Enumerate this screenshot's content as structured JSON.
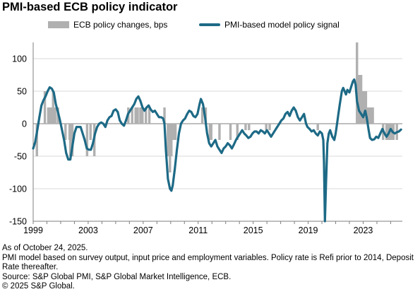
{
  "chart_data": {
    "type": "bar+line",
    "title": "PMI-based ECB policy indicator",
    "xlabel": "",
    "ylabel": "",
    "xlim": [
      1999,
      2025.85
    ],
    "ylim": [
      -150,
      125
    ],
    "yticks": [
      100,
      50,
      0,
      -50,
      -100,
      -150
    ],
    "xticks": [
      1999,
      2003,
      2007,
      2011,
      2015,
      2019,
      2023
    ],
    "grid": "horizontal",
    "legend": "top",
    "colors": {
      "bars": "#b0b0b0",
      "line": "#1d6a86"
    },
    "series": [
      {
        "name": "ECB policy changes, bps",
        "type": "bar",
        "points": [
          [
            1999.27,
            -50
          ],
          [
            1999.85,
            50
          ],
          [
            2000.1,
            25
          ],
          [
            2000.17,
            25
          ],
          [
            2000.3,
            25
          ],
          [
            2000.45,
            50
          ],
          [
            2000.6,
            25
          ],
          [
            2000.8,
            25
          ],
          [
            2001.35,
            -25
          ],
          [
            2001.65,
            -25
          ],
          [
            2001.7,
            -50
          ],
          [
            2001.85,
            -50
          ],
          [
            2002.92,
            -50
          ],
          [
            2003.17,
            -25
          ],
          [
            2003.45,
            -50
          ],
          [
            2005.92,
            25
          ],
          [
            2006.2,
            25
          ],
          [
            2006.45,
            25
          ],
          [
            2006.6,
            25
          ],
          [
            2006.8,
            25
          ],
          [
            2006.95,
            25
          ],
          [
            2007.2,
            25
          ],
          [
            2007.45,
            25
          ],
          [
            2008.55,
            25
          ],
          [
            2008.8,
            -50
          ],
          [
            2008.87,
            -50
          ],
          [
            2008.95,
            -75
          ],
          [
            2009.05,
            -50
          ],
          [
            2009.2,
            -25
          ],
          [
            2009.35,
            -25
          ],
          [
            2011.3,
            25
          ],
          [
            2011.55,
            25
          ],
          [
            2011.85,
            -25
          ],
          [
            2011.95,
            -25
          ],
          [
            2012.55,
            -25
          ],
          [
            2013.35,
            -25
          ],
          [
            2013.85,
            -25
          ],
          [
            2014.45,
            -10
          ],
          [
            2014.7,
            -10
          ],
          [
            2015.95,
            -10
          ],
          [
            2016.2,
            -10
          ],
          [
            2019.7,
            -10
          ],
          [
            2022.55,
            125
          ],
          [
            2022.7,
            75
          ],
          [
            2022.85,
            75
          ],
          [
            2022.95,
            50
          ],
          [
            2023.1,
            50
          ],
          [
            2023.2,
            50
          ],
          [
            2023.35,
            25
          ],
          [
            2023.45,
            25
          ],
          [
            2023.6,
            25
          ],
          [
            2023.7,
            25
          ],
          [
            2024.45,
            -25
          ],
          [
            2024.7,
            -25
          ],
          [
            2024.8,
            -25
          ],
          [
            2024.95,
            -25
          ],
          [
            2025.1,
            -25
          ],
          [
            2025.2,
            -25
          ],
          [
            2025.45,
            -25
          ]
        ]
      },
      {
        "name": "PMI-based model policy signal",
        "type": "line",
        "points": [
          [
            1999.0,
            -38
          ],
          [
            1999.15,
            -28
          ],
          [
            1999.3,
            -10
          ],
          [
            1999.45,
            10
          ],
          [
            1999.6,
            28
          ],
          [
            1999.75,
            36
          ],
          [
            1999.9,
            42
          ],
          [
            2000.05,
            50
          ],
          [
            2000.2,
            56
          ],
          [
            2000.35,
            54
          ],
          [
            2000.5,
            48
          ],
          [
            2000.65,
            30
          ],
          [
            2000.8,
            18
          ],
          [
            2000.95,
            5
          ],
          [
            2001.1,
            -10
          ],
          [
            2001.25,
            -25
          ],
          [
            2001.4,
            -45
          ],
          [
            2001.55,
            -55
          ],
          [
            2001.7,
            -55
          ],
          [
            2001.85,
            -35
          ],
          [
            2002.0,
            -15
          ],
          [
            2002.15,
            -5
          ],
          [
            2002.3,
            -5
          ],
          [
            2002.45,
            -5
          ],
          [
            2002.6,
            -15
          ],
          [
            2002.75,
            -25
          ],
          [
            2002.9,
            -38
          ],
          [
            2003.05,
            -40
          ],
          [
            2003.2,
            -40
          ],
          [
            2003.35,
            -30
          ],
          [
            2003.5,
            -15
          ],
          [
            2003.65,
            -5
          ],
          [
            2003.8,
            0
          ],
          [
            2003.95,
            2
          ],
          [
            2004.1,
            0
          ],
          [
            2004.25,
            -5
          ],
          [
            2004.4,
            5
          ],
          [
            2004.55,
            10
          ],
          [
            2004.7,
            12
          ],
          [
            2004.85,
            20
          ],
          [
            2005.0,
            22
          ],
          [
            2005.15,
            18
          ],
          [
            2005.3,
            5
          ],
          [
            2005.45,
            0
          ],
          [
            2005.6,
            -3
          ],
          [
            2005.75,
            5
          ],
          [
            2005.9,
            15
          ],
          [
            2006.05,
            20
          ],
          [
            2006.2,
            25
          ],
          [
            2006.35,
            30
          ],
          [
            2006.5,
            38
          ],
          [
            2006.65,
            42
          ],
          [
            2006.8,
            35
          ],
          [
            2006.95,
            25
          ],
          [
            2007.1,
            20
          ],
          [
            2007.25,
            25
          ],
          [
            2007.4,
            28
          ],
          [
            2007.55,
            22
          ],
          [
            2007.7,
            18
          ],
          [
            2007.85,
            20
          ],
          [
            2008.0,
            15
          ],
          [
            2008.15,
            10
          ],
          [
            2008.3,
            10
          ],
          [
            2008.45,
            8
          ],
          [
            2008.55,
            0
          ],
          [
            2008.65,
            -40
          ],
          [
            2008.8,
            -85
          ],
          [
            2008.95,
            -100
          ],
          [
            2009.05,
            -103
          ],
          [
            2009.15,
            -95
          ],
          [
            2009.3,
            -70
          ],
          [
            2009.45,
            -40
          ],
          [
            2009.6,
            -15
          ],
          [
            2009.75,
            0
          ],
          [
            2009.9,
            5
          ],
          [
            2010.05,
            8
          ],
          [
            2010.2,
            15
          ],
          [
            2010.35,
            20
          ],
          [
            2010.5,
            18
          ],
          [
            2010.65,
            12
          ],
          [
            2010.8,
            10
          ],
          [
            2010.95,
            15
          ],
          [
            2011.1,
            30
          ],
          [
            2011.2,
            38
          ],
          [
            2011.35,
            30
          ],
          [
            2011.5,
            10
          ],
          [
            2011.65,
            -15
          ],
          [
            2011.8,
            -30
          ],
          [
            2011.95,
            -35
          ],
          [
            2012.1,
            -30
          ],
          [
            2012.25,
            -25
          ],
          [
            2012.4,
            -35
          ],
          [
            2012.55,
            -40
          ],
          [
            2012.7,
            -45
          ],
          [
            2012.85,
            -38
          ],
          [
            2013.0,
            -35
          ],
          [
            2013.15,
            -30
          ],
          [
            2013.3,
            -33
          ],
          [
            2013.45,
            -38
          ],
          [
            2013.6,
            -32
          ],
          [
            2013.75,
            -25
          ],
          [
            2013.9,
            -20
          ],
          [
            2014.05,
            -15
          ],
          [
            2014.2,
            -10
          ],
          [
            2014.35,
            -15
          ],
          [
            2014.5,
            -18
          ],
          [
            2014.65,
            -22
          ],
          [
            2014.8,
            -20
          ],
          [
            2014.95,
            -15
          ],
          [
            2015.1,
            -12
          ],
          [
            2015.25,
            -12
          ],
          [
            2015.4,
            -15
          ],
          [
            2015.55,
            -10
          ],
          [
            2015.7,
            -12
          ],
          [
            2015.85,
            -15
          ],
          [
            2016.0,
            -10
          ],
          [
            2016.15,
            -15
          ],
          [
            2016.3,
            -20
          ],
          [
            2016.45,
            -15
          ],
          [
            2016.6,
            -10
          ],
          [
            2016.75,
            -5
          ],
          [
            2016.9,
            0
          ],
          [
            2017.05,
            5
          ],
          [
            2017.2,
            8
          ],
          [
            2017.35,
            15
          ],
          [
            2017.5,
            18
          ],
          [
            2017.65,
            12
          ],
          [
            2017.8,
            20
          ],
          [
            2017.95,
            25
          ],
          [
            2018.1,
            20
          ],
          [
            2018.25,
            10
          ],
          [
            2018.4,
            5
          ],
          [
            2018.55,
            10
          ],
          [
            2018.7,
            15
          ],
          [
            2018.85,
            0
          ],
          [
            2018.95,
            -5
          ],
          [
            2019.1,
            -8
          ],
          [
            2019.25,
            -12
          ],
          [
            2019.4,
            -10
          ],
          [
            2019.55,
            -15
          ],
          [
            2019.7,
            -18
          ],
          [
            2019.85,
            -12
          ],
          [
            2020.0,
            -15
          ],
          [
            2020.1,
            -25
          ],
          [
            2020.15,
            -60
          ],
          [
            2020.22,
            -150
          ],
          [
            2020.3,
            -90
          ],
          [
            2020.4,
            -30
          ],
          [
            2020.5,
            -15
          ],
          [
            2020.6,
            -10
          ],
          [
            2020.75,
            -20
          ],
          [
            2020.9,
            -25
          ],
          [
            2021.0,
            -15
          ],
          [
            2021.1,
            0
          ],
          [
            2021.2,
            15
          ],
          [
            2021.3,
            30
          ],
          [
            2021.45,
            50
          ],
          [
            2021.55,
            55
          ],
          [
            2021.65,
            50
          ],
          [
            2021.75,
            45
          ],
          [
            2021.85,
            52
          ],
          [
            2022.0,
            48
          ],
          [
            2022.1,
            55
          ],
          [
            2022.25,
            65
          ],
          [
            2022.35,
            68
          ],
          [
            2022.45,
            60
          ],
          [
            2022.55,
            35
          ],
          [
            2022.7,
            20
          ],
          [
            2022.85,
            15
          ],
          [
            2023.0,
            10
          ],
          [
            2023.15,
            20
          ],
          [
            2023.25,
            10
          ],
          [
            2023.4,
            -10
          ],
          [
            2023.5,
            -22
          ],
          [
            2023.65,
            -25
          ],
          [
            2023.8,
            -24
          ],
          [
            2023.95,
            -20
          ],
          [
            2024.1,
            -22
          ],
          [
            2024.25,
            -15
          ],
          [
            2024.4,
            -8
          ],
          [
            2024.55,
            -15
          ],
          [
            2024.7,
            -20
          ],
          [
            2024.85,
            -15
          ],
          [
            2025.0,
            -8
          ],
          [
            2025.15,
            -13
          ],
          [
            2025.3,
            -15
          ],
          [
            2025.45,
            -13
          ],
          [
            2025.6,
            -12
          ],
          [
            2025.75,
            -9
          ]
        ]
      }
    ]
  },
  "legend": {
    "bar_label": "ECB policy changes, bps",
    "line_label": "PMI-based model policy signal"
  },
  "notes": {
    "asof": "As of October 24, 2025.",
    "method": "PMI model based on survey output, input price and employment variables. Policy rate is Refi prior to 2014, Deposit Rate thereafter.",
    "source": "Source: S&P Global PMI, S&P Global Market Intelligence, ECB.",
    "copyright": "© 2025 S&P Global."
  }
}
